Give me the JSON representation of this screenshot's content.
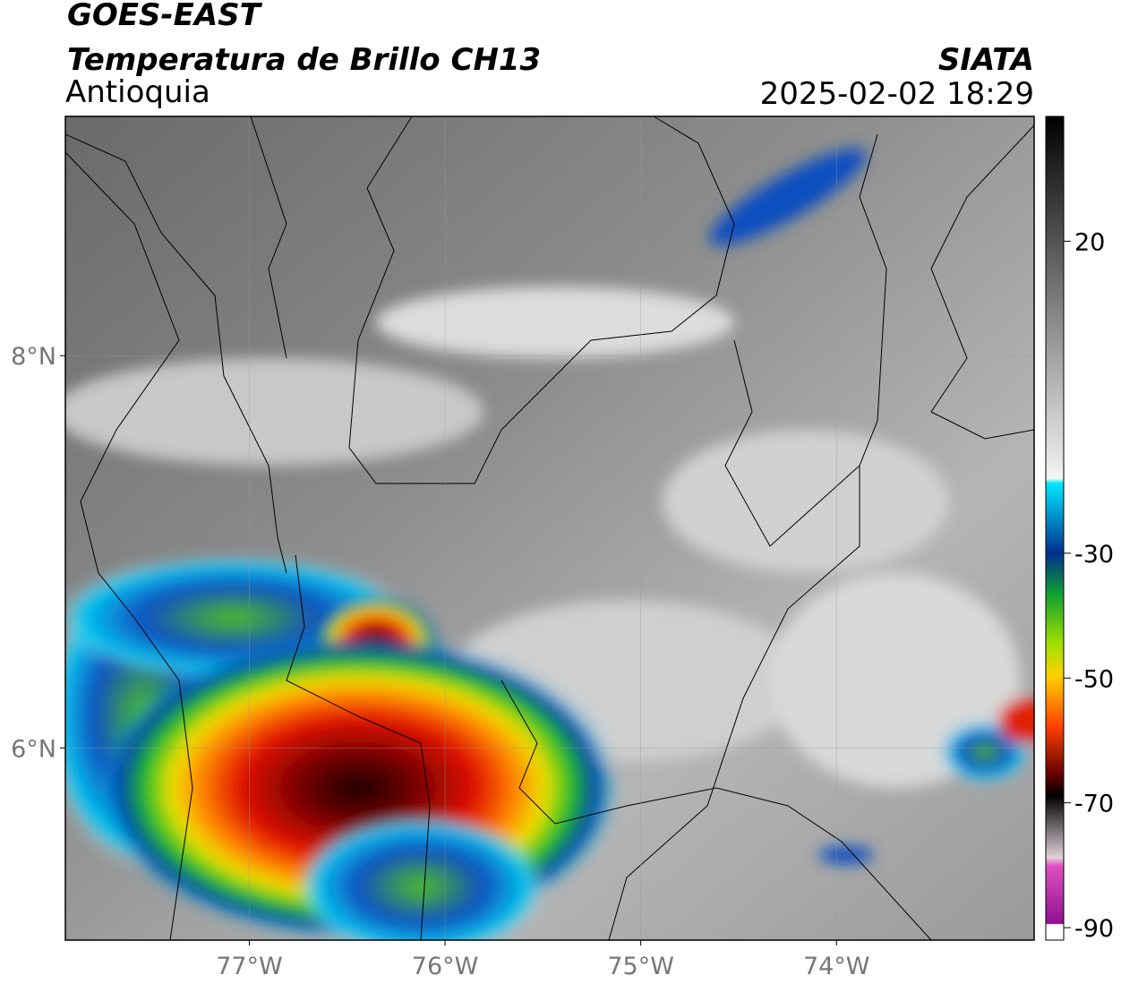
{
  "header": {
    "title": "GOES-EAST",
    "subtitle": "Temperatura de Brillo CH13",
    "region": "Antioquia",
    "organization": "SIATA",
    "datetime": "2025-02-02 18:29"
  },
  "map": {
    "lonlim": [
      -77.94,
      -72.99
    ],
    "latlim": [
      5.02,
      9.22
    ],
    "xticks": [
      {
        "value": -77,
        "label": "77°W"
      },
      {
        "value": -76,
        "label": "76°W"
      },
      {
        "value": -75,
        "label": "75°W"
      },
      {
        "value": -74,
        "label": "74°W"
      }
    ],
    "yticks": [
      {
        "value": 8,
        "label": "8°N"
      },
      {
        "value": 6,
        "label": "6°N"
      }
    ],
    "grid": true
  },
  "colorbar": {
    "lim": [
      -92,
      40
    ],
    "ticks": [
      20,
      -30,
      -50,
      -70,
      -90
    ]
  }
}
